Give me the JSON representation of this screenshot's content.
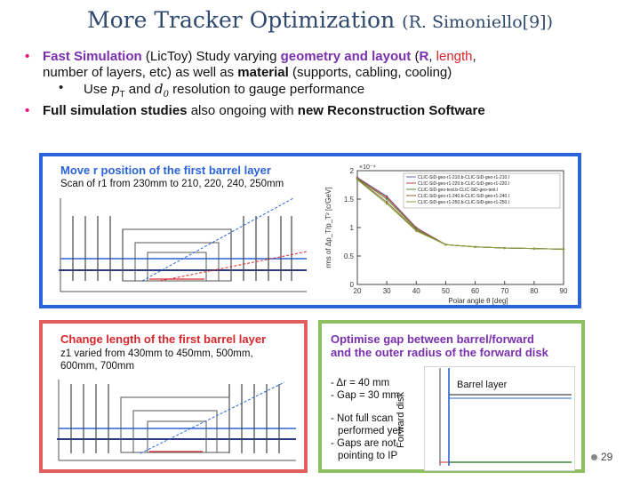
{
  "title": {
    "main": "More Tracker Optimization",
    "ref": "(R. Simoniello[9])"
  },
  "bullets": {
    "b1": {
      "fast_sim": "Fast Simulation",
      "p1": "(LicToy) Study varying",
      "geo": "geometry and layout",
      "p2": "(",
      "r": "R",
      "comma": ",",
      "length": "length",
      "comma2": ",",
      "line2a": "number of layers, etc) as well as",
      "material": "material",
      "line2b": "(supports, cabling, cooling)"
    },
    "b1_sub": {
      "use": "Use",
      "pt": "p",
      "pt_sub": "T",
      "and": "and",
      "d0": "d",
      "d0_sub": "0",
      "rest": "resolution to gauge performance"
    },
    "b2": {
      "full": "Full simulation studies",
      "mid": "also ongoing with",
      "new": "new Reconstruction Software"
    }
  },
  "panel_blue": {
    "heading": "Move r position of the first barrel layer",
    "desc": "Scan of r1 from 230mm to 210, 220, 240, 250mm"
  },
  "panel_red": {
    "heading": "Change length of the first barrel layer",
    "desc1": "z1 varied from 430mm to 450mm, 500mm,",
    "desc2": "600mm, 700mm"
  },
  "panel_green": {
    "heading1": "Optimise gap between barrel/forward",
    "heading2": "and the outer radius of the forward disk",
    "item1": "- Δr = 40 mm",
    "item2": "- Gap = 30 mm",
    "note1": "- Not full scan",
    "note2": "performed yet",
    "note3": "- Gaps are not",
    "note4": "pointing to IP",
    "barrel_label": "Barrel layer",
    "forward_label": "Forward disk"
  },
  "chart_data": {
    "type": "line",
    "xlabel": "Polar angle θ [deg]",
    "ylabel": "rms of Δp_T/p_T² [c/GeV]",
    "y_exponent": "×10⁻⁴",
    "xlim": [
      20,
      90
    ],
    "ylim": [
      0,
      2
    ],
    "x_ticks": [
      "20",
      "30",
      "40",
      "50",
      "60",
      "70",
      "80",
      "90"
    ],
    "y_ticks": [
      "0",
      "0.5",
      "1",
      "1.5",
      "2"
    ],
    "x": [
      20,
      30,
      40,
      50,
      60,
      70,
      80,
      90
    ],
    "series": [
      {
        "name": "CLIC-SiD-geo-r1-210.b-CLIC-SiD-geo-r1-210.l",
        "color": "#6a6aa0",
        "values": [
          1.88,
          1.55,
          1.0,
          0.7,
          0.66,
          0.64,
          0.63,
          0.62
        ]
      },
      {
        "name": "CLIC-SiD-geo-r1-220.b-CLIC-SiD-geo-r1-220.l",
        "color": "#c04040",
        "values": [
          1.87,
          1.53,
          0.99,
          0.7,
          0.66,
          0.64,
          0.63,
          0.62
        ]
      },
      {
        "name": "CLIC-SiD-geo-test.b-CLIC-SiD-geo-test.l",
        "color": "#5a8a3a",
        "values": [
          1.86,
          1.5,
          0.97,
          0.7,
          0.66,
          0.64,
          0.63,
          0.62
        ]
      },
      {
        "name": "CLIC-SiD-geo-r1-240.b-CLIC-SiD-geo-r1-240.l",
        "color": "#8a6a30",
        "values": [
          1.85,
          1.45,
          0.95,
          0.7,
          0.66,
          0.64,
          0.63,
          0.62
        ]
      },
      {
        "name": "CLIC-SiD-geo-r1-250.b-CLIC-SiD-geo-r1-250.l",
        "color": "#8aa040",
        "values": [
          1.84,
          1.42,
          0.94,
          0.7,
          0.66,
          0.64,
          0.63,
          0.62
        ]
      }
    ],
    "legend_placement": "top-right",
    "grid": false
  },
  "page_number": "29",
  "colors": {
    "title": "#2f4a6e",
    "purple": "#7a2fae",
    "red": "#d8262c",
    "blue_frame": "#2b63d9",
    "red_frame": "#e06060",
    "green_frame": "#8fc060"
  }
}
